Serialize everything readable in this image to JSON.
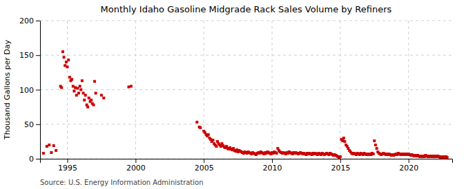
{
  "chart_data": {
    "type": "scatter",
    "title": "Monthly Idaho Gasoline Midgrade Rack Sales Volume by Refiners",
    "ylabel": "Thousand Gallons per Day",
    "annotations": [
      "Source: U.S. Energy Information Administration"
    ],
    "color": "#cc0000",
    "marker": "square",
    "grid": true,
    "xlim": [
      1993.0,
      2023.2
    ],
    "ylim": [
      0,
      200
    ],
    "xticks": [
      1995,
      2000,
      2005,
      2010,
      2015,
      2020
    ],
    "yticks": [
      0,
      50,
      100,
      150,
      200
    ],
    "x": [
      1993.25,
      1993.5,
      1993.67,
      1993.83,
      1994.0,
      1994.17,
      1994.5,
      1994.58,
      1994.67,
      1994.75,
      1994.83,
      1994.92,
      1995.0,
      1995.08,
      1995.17,
      1995.25,
      1995.33,
      1995.42,
      1995.5,
      1995.58,
      1995.67,
      1995.75,
      1995.83,
      1995.92,
      1996.0,
      1996.08,
      1996.17,
      1996.25,
      1996.33,
      1996.42,
      1996.5,
      1996.58,
      1996.67,
      1996.75,
      1996.83,
      1996.92,
      1997.0,
      1997.08,
      1997.5,
      1997.67,
      1999.5,
      1999.67,
      2004.5,
      2004.67,
      2004.75,
      2005.0,
      2005.08,
      2005.17,
      2005.25,
      2005.33,
      2005.42,
      2005.5,
      2005.58,
      2005.67,
      2005.75,
      2005.83,
      2005.92,
      2006.0,
      2006.08,
      2006.17,
      2006.25,
      2006.33,
      2006.42,
      2006.5,
      2006.58,
      2006.67,
      2006.75,
      2006.83,
      2006.92,
      2007.0,
      2007.08,
      2007.17,
      2007.25,
      2007.33,
      2007.42,
      2007.5,
      2007.58,
      2007.67,
      2007.75,
      2007.83,
      2007.92,
      2008.0,
      2008.08,
      2008.17,
      2008.25,
      2008.33,
      2008.42,
      2008.5,
      2008.58,
      2008.67,
      2008.75,
      2008.83,
      2008.92,
      2009.0,
      2009.08,
      2009.17,
      2009.25,
      2009.33,
      2009.42,
      2009.5,
      2009.58,
      2009.67,
      2009.75,
      2009.83,
      2009.92,
      2010.0,
      2010.08,
      2010.17,
      2010.25,
      2010.33,
      2010.42,
      2010.5,
      2010.58,
      2010.67,
      2010.75,
      2010.83,
      2010.92,
      2011.0,
      2011.08,
      2011.17,
      2011.25,
      2011.33,
      2011.42,
      2011.5,
      2011.58,
      2011.67,
      2011.75,
      2011.83,
      2011.92,
      2012.0,
      2012.08,
      2012.17,
      2012.25,
      2012.33,
      2012.42,
      2012.5,
      2012.58,
      2012.67,
      2012.75,
      2012.83,
      2012.92,
      2013.0,
      2013.08,
      2013.17,
      2013.25,
      2013.33,
      2013.42,
      2013.5,
      2013.58,
      2013.67,
      2013.75,
      2013.83,
      2013.92,
      2014.0,
      2014.08,
      2014.17,
      2014.25,
      2014.33,
      2014.42,
      2014.5,
      2014.58,
      2014.67,
      2014.75,
      2014.83,
      2014.92,
      2015.0,
      2015.08,
      2015.17,
      2015.25,
      2015.33,
      2015.42,
      2015.5,
      2015.58,
      2015.67,
      2015.75,
      2015.83,
      2015.92,
      2016.0,
      2016.08,
      2016.17,
      2016.25,
      2016.33,
      2016.42,
      2016.5,
      2016.58,
      2016.67,
      2016.75,
      2016.83,
      2016.92,
      2017.0,
      2017.08,
      2017.17,
      2017.25,
      2017.33,
      2017.42,
      2017.5,
      2017.58,
      2017.67,
      2017.75,
      2017.83,
      2017.92,
      2018.0,
      2018.08,
      2018.17,
      2018.25,
      2018.33,
      2018.42,
      2018.5,
      2018.58,
      2018.67,
      2018.75,
      2018.83,
      2018.92,
      2019.0,
      2019.08,
      2019.17,
      2019.25,
      2019.33,
      2019.42,
      2019.5,
      2019.58,
      2019.67,
      2019.75,
      2019.83,
      2019.92,
      2020.0,
      2020.08,
      2020.17,
      2020.25,
      2020.33,
      2020.42,
      2020.5,
      2020.58,
      2020.67,
      2020.75,
      2020.83,
      2020.92,
      2021.0,
      2021.08,
      2021.17,
      2021.25,
      2021.33,
      2021.42,
      2021.5,
      2021.58,
      2021.67,
      2021.75,
      2021.83,
      2021.92,
      2022.0,
      2022.08,
      2022.17,
      2022.25,
      2022.33,
      2022.42,
      2022.5,
      2022.58,
      2022.67,
      2022.75,
      2022.83
    ],
    "values": [
      8,
      18,
      20,
      9,
      19,
      12,
      105,
      103,
      155,
      147,
      135,
      140,
      133,
      143,
      118,
      113,
      115,
      105,
      98,
      103,
      92,
      102,
      95,
      105,
      100,
      113,
      95,
      85,
      92,
      78,
      75,
      88,
      83,
      85,
      80,
      78,
      112,
      95,
      92,
      88,
      104,
      105,
      53,
      46,
      45,
      40,
      38,
      35,
      33,
      35,
      30,
      28,
      25,
      27,
      22,
      20,
      18,
      25,
      22,
      20,
      18,
      22,
      19,
      17,
      16,
      18,
      15,
      14,
      16,
      14,
      13,
      15,
      12,
      11,
      13,
      10,
      12,
      11,
      10,
      9,
      8,
      10,
      9,
      8,
      10,
      9,
      8,
      7,
      9,
      8,
      7,
      6,
      8,
      9,
      8,
      10,
      9,
      8,
      7,
      9,
      8,
      10,
      9,
      8,
      7,
      9,
      8,
      10,
      9,
      8,
      15,
      12,
      10,
      9,
      8,
      9,
      8,
      7,
      9,
      8,
      10,
      9,
      8,
      7,
      9,
      8,
      9,
      8,
      7,
      8,
      9,
      8,
      7,
      8,
      7,
      6,
      8,
      7,
      8,
      7,
      6,
      8,
      7,
      8,
      7,
      6,
      8,
      7,
      6,
      8,
      7,
      6,
      7,
      8,
      7,
      6,
      8,
      7,
      6,
      5,
      6,
      5,
      4,
      3,
      2,
      3,
      28,
      26,
      30,
      25,
      20,
      18,
      15,
      12,
      10,
      8,
      7,
      8,
      7,
      6,
      8,
      7,
      6,
      8,
      7,
      6,
      8,
      7,
      6,
      7,
      6,
      7,
      6,
      8,
      7,
      26,
      20,
      15,
      10,
      8,
      7,
      6,
      7,
      8,
      7,
      6,
      7,
      6,
      7,
      6,
      5,
      6,
      5,
      6,
      7,
      6,
      8,
      7,
      6,
      7,
      6,
      7,
      6,
      7,
      6,
      7,
      6,
      5,
      6,
      5,
      4,
      5,
      4,
      5,
      4,
      3,
      4,
      3,
      4,
      3,
      5,
      4,
      3,
      4,
      3,
      4,
      3,
      4,
      3,
      4,
      3,
      4,
      3,
      2,
      3,
      2,
      3,
      2,
      3,
      2
    ]
  }
}
